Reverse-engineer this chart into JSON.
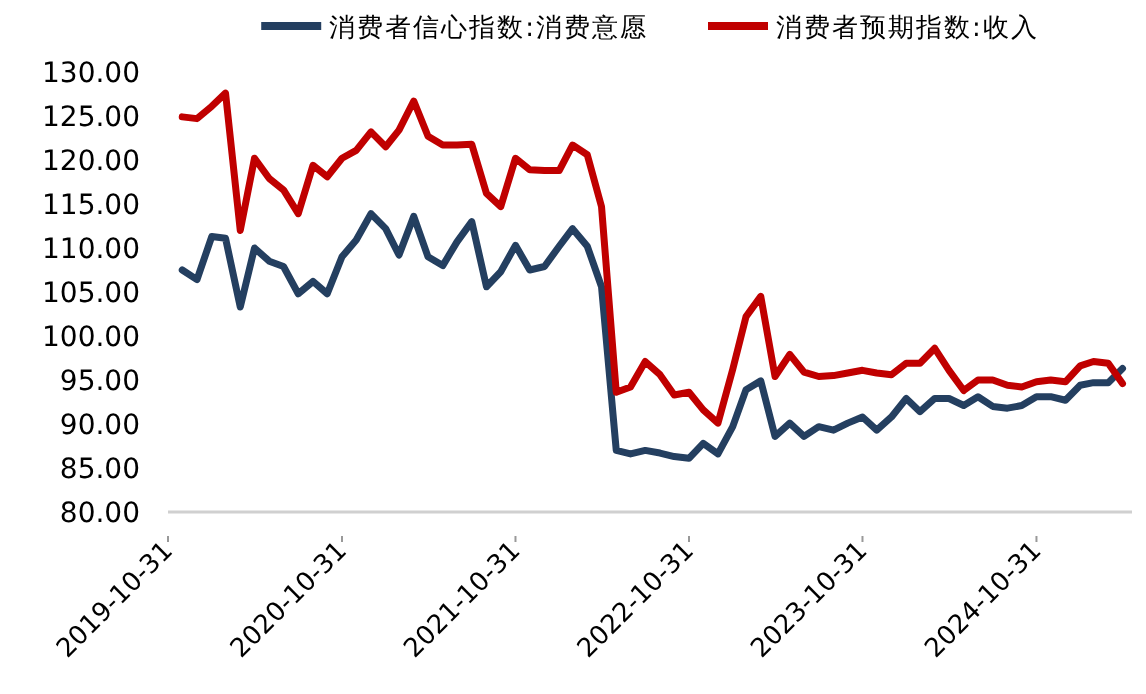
{
  "chart_data": {
    "type": "line",
    "legend": "top",
    "line_style": "solid",
    "marker": "none",
    "grid": false,
    "x": [
      "2019-11-30",
      "2019-12-31",
      "2020-01-31",
      "2020-02-29",
      "2020-03-31",
      "2020-04-30",
      "2020-05-31",
      "2020-06-30",
      "2020-07-31",
      "2020-08-31",
      "2020-09-30",
      "2020-10-31",
      "2020-11-30",
      "2020-12-31",
      "2021-01-31",
      "2021-02-28",
      "2021-03-31",
      "2021-04-30",
      "2021-05-31",
      "2021-06-30",
      "2021-07-31",
      "2021-08-31",
      "2021-09-30",
      "2021-10-31",
      "2021-11-30",
      "2021-12-31",
      "2022-01-31",
      "2022-02-28",
      "2022-03-31",
      "2022-04-30",
      "2022-05-31",
      "2022-06-30",
      "2022-07-31",
      "2022-08-31",
      "2022-09-30",
      "2022-10-31",
      "2022-11-30",
      "2022-12-31",
      "2023-01-31",
      "2023-02-28",
      "2023-03-31",
      "2023-04-30",
      "2023-05-31",
      "2023-06-30",
      "2023-07-31",
      "2023-08-31",
      "2023-09-30",
      "2023-10-31",
      "2023-11-30",
      "2023-12-31",
      "2024-01-31",
      "2024-02-29",
      "2024-03-31",
      "2024-04-30",
      "2024-05-31",
      "2024-06-30",
      "2024-07-31",
      "2024-08-31",
      "2024-09-30",
      "2024-10-31",
      "2024-11-30",
      "2024-12-31",
      "2025-01-31",
      "2025-02-28",
      "2025-03-31",
      "2025-04-30"
    ],
    "xlim": [
      "2019-10-31",
      "2025-05-20"
    ],
    "xticks": [
      "2019-10-31",
      "2020-10-31",
      "2021-10-31",
      "2022-10-31",
      "2023-10-31",
      "2024-10-31"
    ],
    "ylim": [
      80,
      130
    ],
    "yticks": [
      {
        "value": 80,
        "label": "80.00"
      },
      {
        "value": 85,
        "label": "85.00"
      },
      {
        "value": 90,
        "label": "90.00"
      },
      {
        "value": 95,
        "label": "95.00"
      },
      {
        "value": 100,
        "label": "100.00"
      },
      {
        "value": 105,
        "label": "105.00"
      },
      {
        "value": 110,
        "label": "110.00"
      },
      {
        "value": 115,
        "label": "115.00"
      },
      {
        "value": 120,
        "label": "120.00"
      },
      {
        "value": 125,
        "label": "125.00"
      },
      {
        "value": 130,
        "label": "130.00"
      }
    ],
    "series": [
      {
        "name": "消费者信心指数:消费意愿",
        "color": "#243f60",
        "values": [
          107.5,
          106.4,
          111.3,
          111.1,
          103.3,
          110.0,
          108.5,
          107.9,
          104.8,
          106.2,
          104.8,
          109.0,
          110.9,
          113.9,
          112.2,
          109.2,
          113.6,
          109.0,
          108.0,
          110.7,
          113.0,
          105.6,
          107.3,
          110.3,
          107.5,
          107.9,
          110.2,
          112.2,
          110.2,
          105.6,
          87.0,
          86.6,
          87.0,
          86.7,
          86.3,
          86.1,
          87.8,
          86.6,
          89.7,
          93.9,
          94.9,
          88.6,
          90.1,
          88.6,
          89.7,
          89.3,
          90.1,
          90.8,
          89.3,
          90.8,
          92.9,
          91.4,
          92.9,
          92.9,
          92.1,
          93.1,
          92.0,
          91.8,
          92.1,
          93.1,
          93.1,
          92.7,
          94.4,
          94.7,
          94.7,
          96.3
        ]
      },
      {
        "name": "消费者预期指数:收入",
        "color": "#c00000",
        "values": [
          124.9,
          124.7,
          126.1,
          127.6,
          112.0,
          120.2,
          117.9,
          116.6,
          113.9,
          119.4,
          118.1,
          120.2,
          121.1,
          123.2,
          121.5,
          123.4,
          126.7,
          122.7,
          121.7,
          121.7,
          121.8,
          116.2,
          114.7,
          120.2,
          118.9,
          118.8,
          118.8,
          121.7,
          120.6,
          114.7,
          93.6,
          94.2,
          97.1,
          95.6,
          93.3,
          93.6,
          91.6,
          90.1,
          96.2,
          102.2,
          104.5,
          95.4,
          97.9,
          95.9,
          95.4,
          95.5,
          95.8,
          96.1,
          95.8,
          95.6,
          96.9,
          96.9,
          98.6,
          96.1,
          93.8,
          95.0,
          95.0,
          94.4,
          94.2,
          94.8,
          95.0,
          94.8,
          96.6,
          97.1,
          96.9,
          94.6
        ]
      }
    ]
  }
}
